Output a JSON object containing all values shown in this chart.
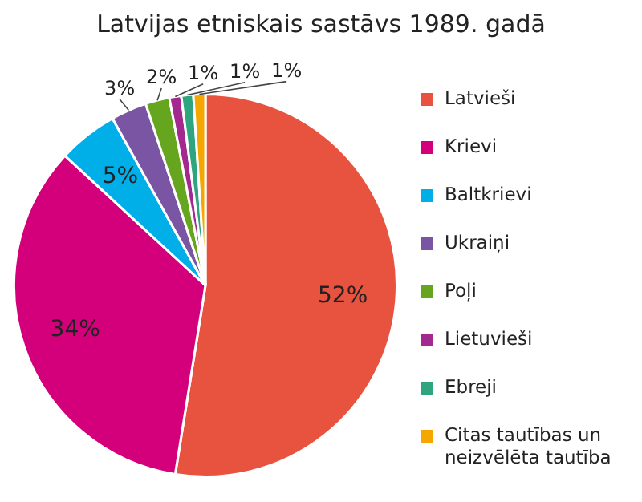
{
  "chart_data": {
    "type": "pie",
    "title": "Latvijas etniskais sastāvs 1989. gadā",
    "categories": [
      "Latvieši",
      "Krievi",
      "Baltkrievi",
      "Ukraiņi",
      "Poļi",
      "Lietuvieši",
      "Ebreji",
      "Citas tautības un neizvēlēta tautība"
    ],
    "values": [
      52,
      34,
      5,
      3,
      2,
      1,
      1,
      1
    ],
    "colors": [
      "#e8533f",
      "#d4007b",
      "#00aee8",
      "#7a55a3",
      "#66a61e",
      "#a3288f",
      "#2ea57f",
      "#f5a700"
    ],
    "value_labels": [
      "52%",
      "34%",
      "5%",
      "3%",
      "2%",
      "1%",
      "1%",
      "1%"
    ],
    "legend": "right"
  }
}
